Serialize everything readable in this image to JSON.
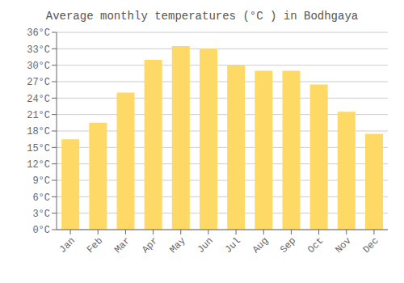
{
  "chart_data": {
    "type": "bar",
    "title": "Average monthly temperatures (°C ) in Bodhgaya",
    "categories": [
      "Jan",
      "Feb",
      "Mar",
      "Apr",
      "May",
      "Jun",
      "Jul",
      "Aug",
      "Sep",
      "Oct",
      "Nov",
      "Dec"
    ],
    "values": [
      16.5,
      19.5,
      25.0,
      31.0,
      33.5,
      33.0,
      30.0,
      29.0,
      29.0,
      26.5,
      21.5,
      17.5
    ],
    "color": "#FFD966",
    "ylim": [
      0,
      36
    ],
    "yticks": [
      {
        "value": 0,
        "label": "0°C"
      },
      {
        "value": 3,
        "label": "3°C"
      },
      {
        "value": 6,
        "label": "6°C"
      },
      {
        "value": 9,
        "label": "9°C"
      },
      {
        "value": 12,
        "label": "12°C"
      },
      {
        "value": 15,
        "label": "15°C"
      },
      {
        "value": 18,
        "label": "18°C"
      },
      {
        "value": 21,
        "label": "21°C"
      },
      {
        "value": 24,
        "label": "24°C"
      },
      {
        "value": 27,
        "label": "27°C"
      },
      {
        "value": 30,
        "label": "30°C"
      },
      {
        "value": 33,
        "label": "33°C"
      },
      {
        "value": 36,
        "label": "36°C"
      }
    ],
    "grid": true
  }
}
